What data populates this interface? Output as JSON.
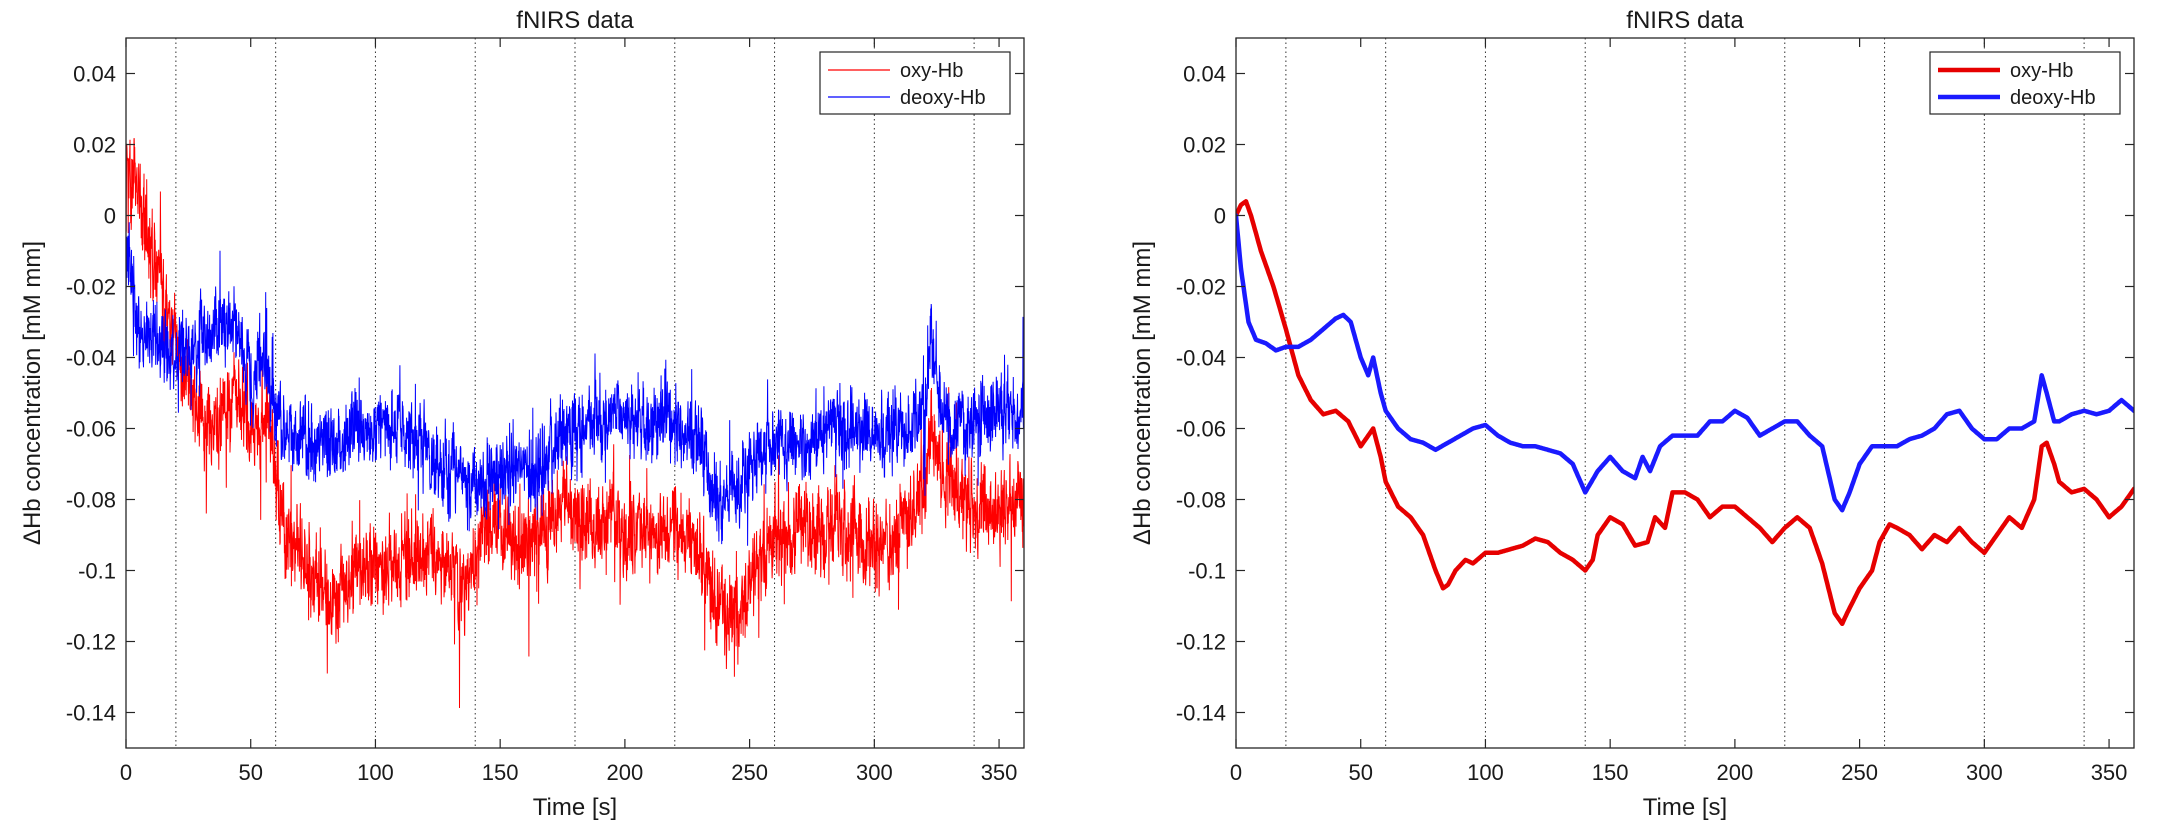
{
  "chart_data": [
    {
      "type": "line",
      "title": "fNIRS data",
      "xlabel": "Time [s]",
      "ylabel": "ΔHb concentration [mM mm]",
      "xlim": [
        0,
        360
      ],
      "ylim": [
        -0.15,
        0.05
      ],
      "xticks": [
        0,
        50,
        100,
        150,
        200,
        250,
        300,
        350
      ],
      "yticks": [
        0.04,
        0.02,
        0,
        -0.02,
        -0.04,
        -0.06,
        -0.08,
        -0.1,
        -0.12,
        -0.14
      ],
      "ytick_labels": [
        "0.04",
        "0.02",
        "0",
        "-0.02",
        "-0.04",
        "-0.06",
        "-0.08",
        "-0.1",
        "-0.12",
        "-0.14"
      ],
      "event_markers_x": [
        20,
        60,
        100,
        140,
        180,
        220,
        260,
        300,
        340
      ],
      "legend_position": "top-right",
      "line_style": "thin-noisy",
      "series": [
        {
          "name": "oxy-Hb",
          "color": "#ff0000",
          "noise_amplitude": 0.014,
          "x": [
            0,
            3,
            10,
            20,
            30,
            40,
            45,
            50,
            55,
            58,
            62,
            70,
            80,
            85,
            90,
            100,
            110,
            120,
            130,
            135,
            140,
            145,
            150,
            155,
            160,
            165,
            170,
            175,
            180,
            185,
            190,
            195,
            200,
            210,
            220,
            225,
            230,
            235,
            240,
            245,
            250,
            255,
            260,
            270,
            280,
            290,
            300,
            305,
            310,
            315,
            320,
            323,
            325,
            330,
            340,
            350,
            360
          ],
          "values": [
            0.02,
            0.01,
            -0.01,
            -0.035,
            -0.06,
            -0.055,
            -0.05,
            -0.062,
            -0.06,
            -0.055,
            -0.085,
            -0.095,
            -0.105,
            -0.11,
            -0.1,
            -0.098,
            -0.097,
            -0.095,
            -0.1,
            -0.105,
            -0.098,
            -0.088,
            -0.085,
            -0.09,
            -0.095,
            -0.09,
            -0.088,
            -0.08,
            -0.082,
            -0.085,
            -0.09,
            -0.085,
            -0.09,
            -0.092,
            -0.088,
            -0.09,
            -0.095,
            -0.105,
            -0.115,
            -0.112,
            -0.105,
            -0.095,
            -0.09,
            -0.088,
            -0.09,
            -0.088,
            -0.095,
            -0.092,
            -0.088,
            -0.085,
            -0.075,
            -0.06,
            -0.065,
            -0.078,
            -0.082,
            -0.085,
            -0.08
          ]
        },
        {
          "name": "deoxy-Hb",
          "color": "#0000ff",
          "noise_amplitude": 0.012,
          "x": [
            0,
            5,
            10,
            20,
            30,
            40,
            45,
            50,
            55,
            58,
            62,
            70,
            80,
            90,
            100,
            110,
            120,
            130,
            140,
            150,
            160,
            165,
            170,
            175,
            180,
            190,
            200,
            210,
            220,
            230,
            235,
            240,
            245,
            250,
            260,
            270,
            280,
            290,
            300,
            310,
            320,
            323,
            325,
            330,
            340,
            350,
            360
          ],
          "values": [
            -0.01,
            -0.03,
            -0.035,
            -0.04,
            -0.035,
            -0.03,
            -0.032,
            -0.045,
            -0.04,
            -0.05,
            -0.06,
            -0.065,
            -0.065,
            -0.06,
            -0.06,
            -0.062,
            -0.065,
            -0.072,
            -0.075,
            -0.072,
            -0.07,
            -0.075,
            -0.065,
            -0.062,
            -0.06,
            -0.058,
            -0.055,
            -0.06,
            -0.058,
            -0.065,
            -0.075,
            -0.082,
            -0.078,
            -0.07,
            -0.065,
            -0.065,
            -0.06,
            -0.058,
            -0.063,
            -0.06,
            -0.058,
            -0.03,
            -0.05,
            -0.06,
            -0.058,
            -0.055,
            -0.055
          ]
        }
      ]
    },
    {
      "type": "line",
      "title": "fNIRS data",
      "xlabel": "Time [s]",
      "ylabel": "ΔHb concentration [mM mm]",
      "xlim": [
        0,
        360
      ],
      "ylim": [
        -0.15,
        0.05
      ],
      "xticks": [
        0,
        50,
        100,
        150,
        200,
        250,
        300,
        350
      ],
      "yticks": [
        0.04,
        0.02,
        0,
        -0.02,
        -0.04,
        -0.06,
        -0.08,
        -0.1,
        -0.12,
        -0.14
      ],
      "ytick_labels": [
        "0.04",
        "0.02",
        "0",
        "-0.02",
        "-0.04",
        "-0.06",
        "-0.08",
        "-0.1",
        "-0.12",
        "-0.14"
      ],
      "event_markers_x": [
        20,
        60,
        100,
        140,
        180,
        220,
        260,
        300,
        340
      ],
      "legend_position": "top-right",
      "line_style": "thick-smooth",
      "series": [
        {
          "name": "oxy-Hb",
          "color": "#e60000",
          "x": [
            0,
            2,
            4,
            6,
            10,
            15,
            20,
            25,
            30,
            35,
            40,
            45,
            50,
            53,
            55,
            58,
            60,
            65,
            70,
            75,
            80,
            83,
            85,
            88,
            92,
            95,
            100,
            105,
            110,
            115,
            120,
            125,
            130,
            135,
            140,
            143,
            145,
            150,
            155,
            160,
            165,
            168,
            172,
            175,
            180,
            185,
            190,
            195,
            200,
            205,
            210,
            215,
            220,
            225,
            230,
            235,
            240,
            243,
            245,
            250,
            255,
            258,
            262,
            265,
            270,
            275,
            280,
            285,
            290,
            295,
            300,
            305,
            310,
            315,
            320,
            323,
            325,
            328,
            330,
            335,
            340,
            345,
            350,
            355,
            360
          ],
          "values": [
            0.0,
            0.003,
            0.004,
            0.0,
            -0.01,
            -0.02,
            -0.032,
            -0.045,
            -0.052,
            -0.056,
            -0.055,
            -0.058,
            -0.065,
            -0.062,
            -0.06,
            -0.068,
            -0.075,
            -0.082,
            -0.085,
            -0.09,
            -0.1,
            -0.105,
            -0.104,
            -0.1,
            -0.097,
            -0.098,
            -0.095,
            -0.095,
            -0.094,
            -0.093,
            -0.091,
            -0.092,
            -0.095,
            -0.097,
            -0.1,
            -0.097,
            -0.09,
            -0.085,
            -0.087,
            -0.093,
            -0.092,
            -0.085,
            -0.088,
            -0.078,
            -0.078,
            -0.08,
            -0.085,
            -0.082,
            -0.082,
            -0.085,
            -0.088,
            -0.092,
            -0.088,
            -0.085,
            -0.088,
            -0.098,
            -0.112,
            -0.115,
            -0.112,
            -0.105,
            -0.1,
            -0.092,
            -0.087,
            -0.088,
            -0.09,
            -0.094,
            -0.09,
            -0.092,
            -0.088,
            -0.092,
            -0.095,
            -0.09,
            -0.085,
            -0.088,
            -0.08,
            -0.065,
            -0.064,
            -0.07,
            -0.075,
            -0.078,
            -0.077,
            -0.08,
            -0.085,
            -0.082,
            -0.077
          ]
        },
        {
          "name": "deoxy-Hb",
          "color": "#1a1aff",
          "x": [
            0,
            2,
            5,
            8,
            12,
            16,
            20,
            25,
            30,
            35,
            40,
            43,
            46,
            50,
            53,
            55,
            58,
            60,
            65,
            70,
            75,
            80,
            85,
            90,
            95,
            100,
            105,
            110,
            115,
            120,
            125,
            130,
            135,
            140,
            145,
            150,
            155,
            160,
            163,
            166,
            170,
            175,
            180,
            185,
            190,
            195,
            200,
            205,
            210,
            215,
            220,
            225,
            230,
            235,
            240,
            243,
            246,
            250,
            255,
            260,
            265,
            270,
            275,
            280,
            285,
            290,
            295,
            300,
            305,
            310,
            315,
            320,
            323,
            325,
            328,
            330,
            335,
            340,
            345,
            350,
            355,
            360
          ],
          "values": [
            0.0,
            -0.015,
            -0.03,
            -0.035,
            -0.036,
            -0.038,
            -0.037,
            -0.037,
            -0.035,
            -0.032,
            -0.029,
            -0.028,
            -0.03,
            -0.04,
            -0.045,
            -0.04,
            -0.05,
            -0.055,
            -0.06,
            -0.063,
            -0.064,
            -0.066,
            -0.064,
            -0.062,
            -0.06,
            -0.059,
            -0.062,
            -0.064,
            -0.065,
            -0.065,
            -0.066,
            -0.067,
            -0.07,
            -0.078,
            -0.072,
            -0.068,
            -0.072,
            -0.074,
            -0.068,
            -0.072,
            -0.065,
            -0.062,
            -0.062,
            -0.062,
            -0.058,
            -0.058,
            -0.055,
            -0.057,
            -0.062,
            -0.06,
            -0.058,
            -0.058,
            -0.062,
            -0.065,
            -0.08,
            -0.083,
            -0.078,
            -0.07,
            -0.065,
            -0.065,
            -0.065,
            -0.063,
            -0.062,
            -0.06,
            -0.056,
            -0.055,
            -0.06,
            -0.063,
            -0.063,
            -0.06,
            -0.06,
            -0.058,
            -0.045,
            -0.05,
            -0.058,
            -0.058,
            -0.056,
            -0.055,
            -0.056,
            -0.055,
            -0.052,
            -0.055
          ]
        }
      ]
    }
  ]
}
